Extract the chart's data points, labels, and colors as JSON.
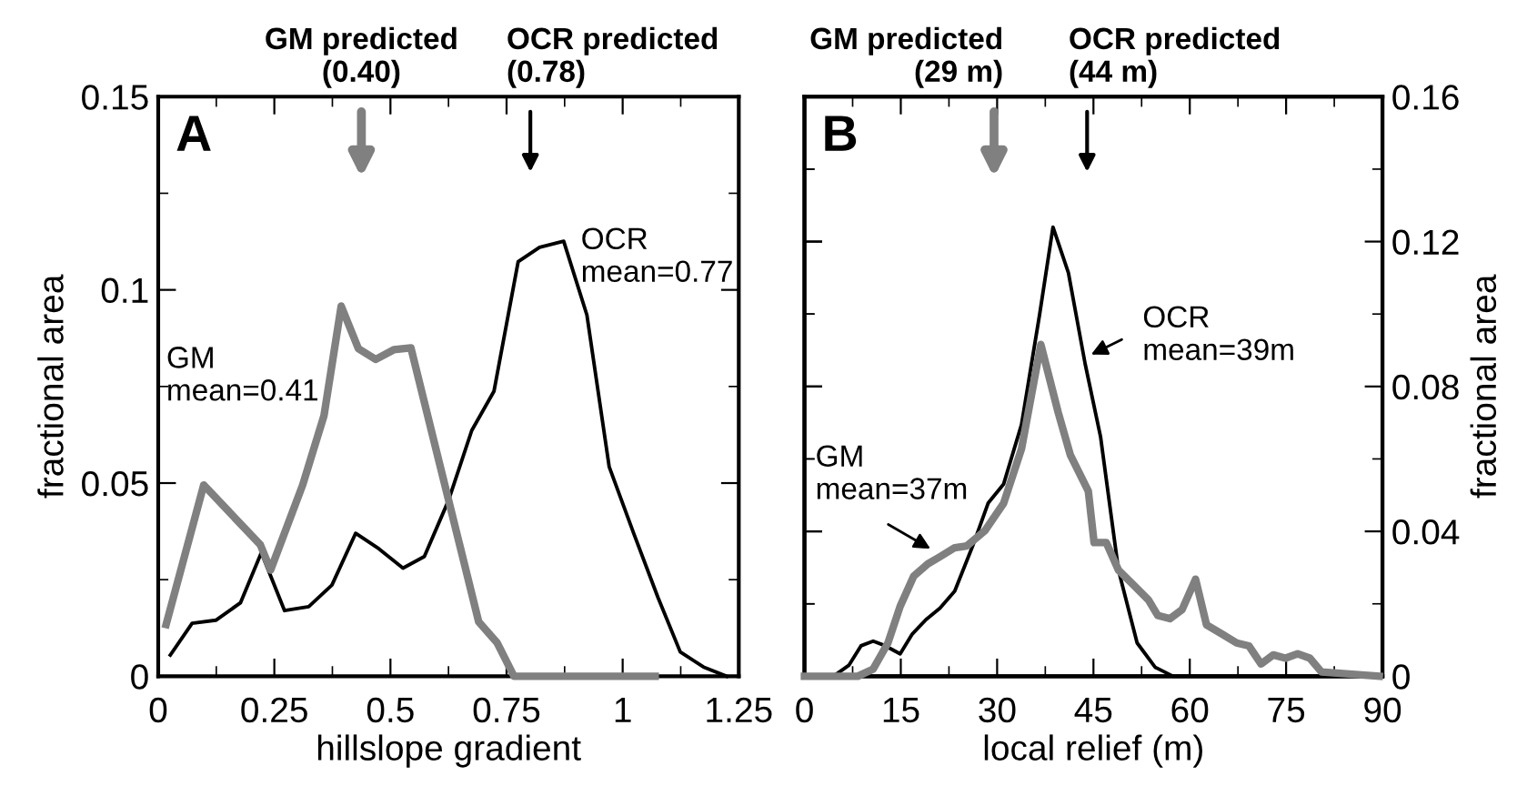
{
  "chart_data": [
    {
      "type": "line",
      "title": "A",
      "xlabel": "hillslope gradient",
      "ylabel": "fractional area",
      "xlim": [
        0,
        1.25
      ],
      "xticks": [
        0,
        {
          "value": 0.125,
          "label": null
        },
        0.25,
        {
          "value": 0.375,
          "label": null
        },
        0.5,
        {
          "value": 0.625,
          "label": null
        },
        0.75,
        {
          "value": 0.875,
          "label": null
        },
        1,
        {
          "value": 1.125,
          "label": null
        },
        1.25
      ],
      "ylim": [
        0,
        0.15
      ],
      "yticks": [
        0,
        {
          "value": 0.025,
          "label": null
        },
        0.05,
        {
          "value": 0.075,
          "label": null
        },
        0.1,
        {
          "value": 0.125,
          "label": null
        },
        0.15
      ],
      "series": [
        {
          "color": "#808080",
          "x": [
            0.017,
            0.098,
            0.22,
            0.242,
            0.311,
            0.357,
            0.394,
            0.431,
            0.468,
            0.507,
            0.544,
            0.69,
            0.73,
            0.766,
            1.07
          ],
          "values": [
            0.0134,
            0.0495,
            0.034,
            0.0275,
            0.0495,
            0.0675,
            0.0958,
            0.0848,
            0.082,
            0.0845,
            0.085,
            0.0141,
            0.0086,
            0,
            0
          ]
        },
        {
          "color": "#000000",
          "x": [
            0.026,
            0.073,
            0.124,
            0.177,
            0.222,
            0.272,
            0.324,
            0.374,
            0.425,
            0.475,
            0.527,
            0.573,
            0.625,
            0.675,
            0.723,
            0.775,
            0.821,
            0.873,
            0.923,
            0.971,
            1.024,
            1.076,
            1.124,
            1.174,
            1.224
          ],
          "values": [
            0.0055,
            0.0137,
            0.0145,
            0.019,
            0.032,
            0.017,
            0.018,
            0.0236,
            0.037,
            0.033,
            0.028,
            0.031,
            0.0455,
            0.0636,
            0.0738,
            0.1073,
            0.111,
            0.1126,
            0.0935,
            0.0542,
            0.0369,
            0.0204,
            0.0063,
            0.0024,
            0
          ]
        }
      ],
      "annotations": [
        "GM predicted\n(0.40)",
        "OCR predicted\n(0.78)",
        "GM\nmean=0.41",
        "OCR\nmean=0.77"
      ]
    },
    {
      "type": "line",
      "title": "B",
      "xlabel": "local relief (m)",
      "y2label": "fractional area",
      "xlim": [
        0,
        90
      ],
      "xticks": [
        0,
        {
          "value": 7.5,
          "label": null
        },
        15,
        {
          "value": 22.5,
          "label": null
        },
        30,
        {
          "value": 37.5,
          "label": null
        },
        45,
        {
          "value": 52.5,
          "label": null
        },
        60,
        {
          "value": 67.5,
          "label": null
        },
        75,
        {
          "value": 82.5,
          "label": null
        },
        90
      ],
      "y2lim": [
        0,
        0.16
      ],
      "y2ticks": [
        0,
        {
          "value": 0.02,
          "label": null
        },
        0.04,
        {
          "value": 0.06,
          "label": null
        },
        0.08,
        {
          "value": 0.1,
          "label": null
        },
        0.12,
        {
          "value": 0.14,
          "label": null
        },
        0.16
      ],
      "series": [
        {
          "color": "#808080",
          "axis": "y2",
          "x": [
            0,
            8.3,
            10.7,
            13,
            14.9,
            17,
            19.2,
            21.1,
            23.4,
            25.3,
            28.1,
            31,
            33.8,
            36.8,
            39.5,
            41.4,
            44.2,
            45.1,
            47,
            48.9,
            51.3,
            53.6,
            55,
            56.9,
            58.8,
            60.9,
            62.6,
            65,
            67.3,
            69.2,
            71.1,
            73,
            74.9,
            76.8,
            78.7,
            80.5,
            89.5
          ],
          "values": [
            0,
            0,
            0.002,
            0.0092,
            0.0193,
            0.0276,
            0.031,
            0.033,
            0.0355,
            0.036,
            0.0402,
            0.0477,
            0.0628,
            0.0916,
            0.0729,
            0.0611,
            0.0511,
            0.0369,
            0.0369,
            0.0293,
            0.0251,
            0.021,
            0.0168,
            0.0159,
            0.0184,
            0.0268,
            0.0142,
            0.0117,
            0.0092,
            0.0084,
            0.0034,
            0.0059,
            0.005,
            0.0062,
            0.005,
            0.0012,
            0
          ]
        },
        {
          "color": "#000000",
          "axis": "y2",
          "x": [
            0,
            4.5,
            6.9,
            8.8,
            10.7,
            12.6,
            14.9,
            16.8,
            18.9,
            21.1,
            23.4,
            26.2,
            28.6,
            31,
            33.8,
            36.6,
            38.7,
            41.1,
            43.7,
            46.1,
            48.9,
            51.8,
            54.6,
            57.4,
            89.5
          ],
          "values": [
            0,
            0,
            0.003,
            0.0084,
            0.0097,
            0.0084,
            0.0062,
            0.0117,
            0.0156,
            0.0188,
            0.0235,
            0.036,
            0.0478,
            0.053,
            0.0695,
            0.0997,
            0.124,
            0.1114,
            0.0863,
            0.0662,
            0.0293,
            0.0092,
            0.0025,
            0,
            0
          ]
        }
      ],
      "annotations": [
        "GM predicted\n(29 m)",
        "OCR predicted\n(44 m)",
        "GM\nmean=37m",
        "OCR\nmean=39m"
      ]
    }
  ]
}
